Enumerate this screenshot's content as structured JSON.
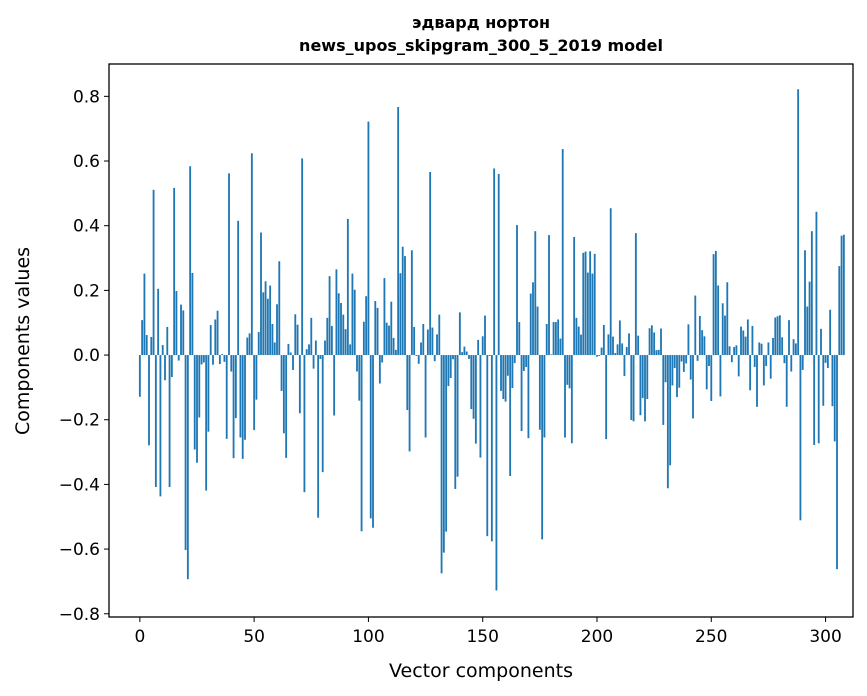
{
  "chart_data": {
    "type": "bar",
    "title": "эдвард нортон",
    "subtitle": "news_upos_skipgram_300_5_2019 model",
    "xlabel": "Vector components",
    "ylabel": "Components values",
    "xlim": [
      -13.5,
      312
    ],
    "ylim": [
      -0.81,
      0.9
    ],
    "xticks": [
      0,
      50,
      100,
      150,
      200,
      250,
      300
    ],
    "xtick_labels": [
      "0",
      "50",
      "100",
      "150",
      "200",
      "250",
      "300"
    ],
    "yticks": [
      0.8,
      0.6,
      0.4,
      0.2,
      0.0,
      -0.2,
      -0.4,
      -0.6,
      -0.8
    ],
    "ytick_labels": [
      "0.8",
      "0.6",
      "0.4",
      "0.2",
      "0.0",
      "−0.2",
      "−0.4",
      "−0.6",
      "−0.8"
    ],
    "bar_color": "#1f77b4",
    "values": [
      -0.129,
      0.108,
      0.252,
      0.062,
      -0.279,
      0.056,
      0.511,
      -0.408,
      0.205,
      -0.437,
      0.031,
      -0.078,
      0.087,
      -0.408,
      -0.068,
      0.517,
      0.198,
      -0.017,
      0.156,
      0.138,
      -0.603,
      -0.693,
      0.584,
      0.254,
      -0.292,
      -0.333,
      -0.193,
      -0.029,
      -0.023,
      -0.419,
      -0.237,
      0.093,
      -0.03,
      0.11,
      0.137,
      -0.028,
      0.003,
      -0.021,
      -0.259,
      0.562,
      -0.051,
      -0.319,
      -0.195,
      0.415,
      -0.255,
      -0.321,
      -0.262,
      0.054,
      0.067,
      0.624,
      -0.232,
      -0.138,
      0.071,
      0.379,
      0.194,
      0.228,
      0.174,
      0.215,
      0.096,
      0.039,
      0.157,
      0.29,
      -0.111,
      -0.242,
      -0.318,
      0.034,
      0.008,
      -0.046,
      0.126,
      0.094,
      -0.18,
      0.608,
      -0.424,
      0.018,
      0.033,
      0.115,
      -0.042,
      0.045,
      -0.503,
      -0.012,
      -0.362,
      0.045,
      0.115,
      0.244,
      0.09,
      -0.187,
      0.265,
      0.191,
      0.161,
      0.125,
      0.08,
      0.421,
      0.033,
      0.252,
      0.202,
      -0.051,
      -0.141,
      -0.545,
      0.103,
      0.182,
      0.722,
      -0.505,
      -0.534,
      0.167,
      0.146,
      -0.088,
      -0.023,
      0.238,
      0.1,
      0.091,
      0.165,
      0.053,
      0.016,
      0.767,
      0.253,
      0.335,
      0.306,
      -0.17,
      -0.298,
      0.324,
      0.087,
      -0.003,
      -0.027,
      0.039,
      0.096,
      -0.255,
      0.079,
      0.566,
      0.085,
      -0.019,
      0.064,
      0.125,
      -0.675,
      -0.611,
      -0.546,
      -0.096,
      -0.071,
      -0.013,
      -0.414,
      -0.376,
      0.132,
      0.009,
      0.026,
      0.011,
      -0.012,
      -0.167,
      -0.197,
      -0.274,
      0.047,
      -0.317,
      0.058,
      0.122,
      -0.56,
      -0.003,
      -0.576,
      0.577,
      -0.728,
      0.56,
      -0.111,
      -0.136,
      -0.144,
      -0.064,
      -0.374,
      -0.102,
      -0.025,
      0.402,
      0.102,
      -0.235,
      -0.049,
      -0.037,
      -0.257,
      0.19,
      0.225,
      0.383,
      0.15,
      -0.231,
      -0.57,
      -0.255,
      0.096,
      0.371,
      0.002,
      0.102,
      0.102,
      0.11,
      0.051,
      0.637,
      -0.255,
      -0.092,
      -0.103,
      -0.273,
      0.365,
      0.115,
      0.088,
      0.063,
      0.316,
      0.32,
      0.255,
      0.321,
      0.252,
      0.313,
      -0.005,
      -0.003,
      0.023,
      0.093,
      -0.26,
      0.064,
      0.454,
      0.057,
      0.006,
      0.033,
      0.107,
      0.036,
      -0.065,
      0.025,
      0.067,
      -0.201,
      -0.205,
      0.377,
      0.06,
      -0.186,
      -0.133,
      -0.205,
      -0.136,
      0.083,
      0.092,
      0.07,
      0.015,
      0.016,
      0.082,
      -0.216,
      -0.084,
      -0.412,
      -0.341,
      -0.094,
      -0.04,
      -0.13,
      -0.101,
      -0.02,
      -0.052,
      -0.026,
      0.095,
      -0.076,
      -0.196,
      0.184,
      -0.018,
      0.121,
      0.077,
      0.058,
      -0.106,
      -0.034,
      -0.142,
      0.312,
      0.322,
      0.215,
      -0.128,
      0.16,
      0.122,
      0.225,
      0.027,
      -0.022,
      0.025,
      0.03,
      -0.066,
      0.088,
      0.076,
      0.057,
      0.11,
      -0.109,
      0.09,
      -0.037,
      -0.16,
      0.039,
      0.035,
      -0.094,
      -0.034,
      0.039,
      -0.073,
      0.053,
      0.116,
      0.12,
      0.123,
      0.055,
      -0.025,
      -0.16,
      0.108,
      -0.051,
      0.049,
      0.036,
      0.822,
      -0.511,
      -0.046,
      0.324,
      0.15,
      0.227,
      0.383,
      -0.278,
      0.443,
      -0.273,
      0.081,
      -0.157,
      -0.024,
      -0.04,
      0.14,
      -0.158,
      -0.267,
      -0.662,
      0.275,
      0.369,
      0.372
    ]
  }
}
